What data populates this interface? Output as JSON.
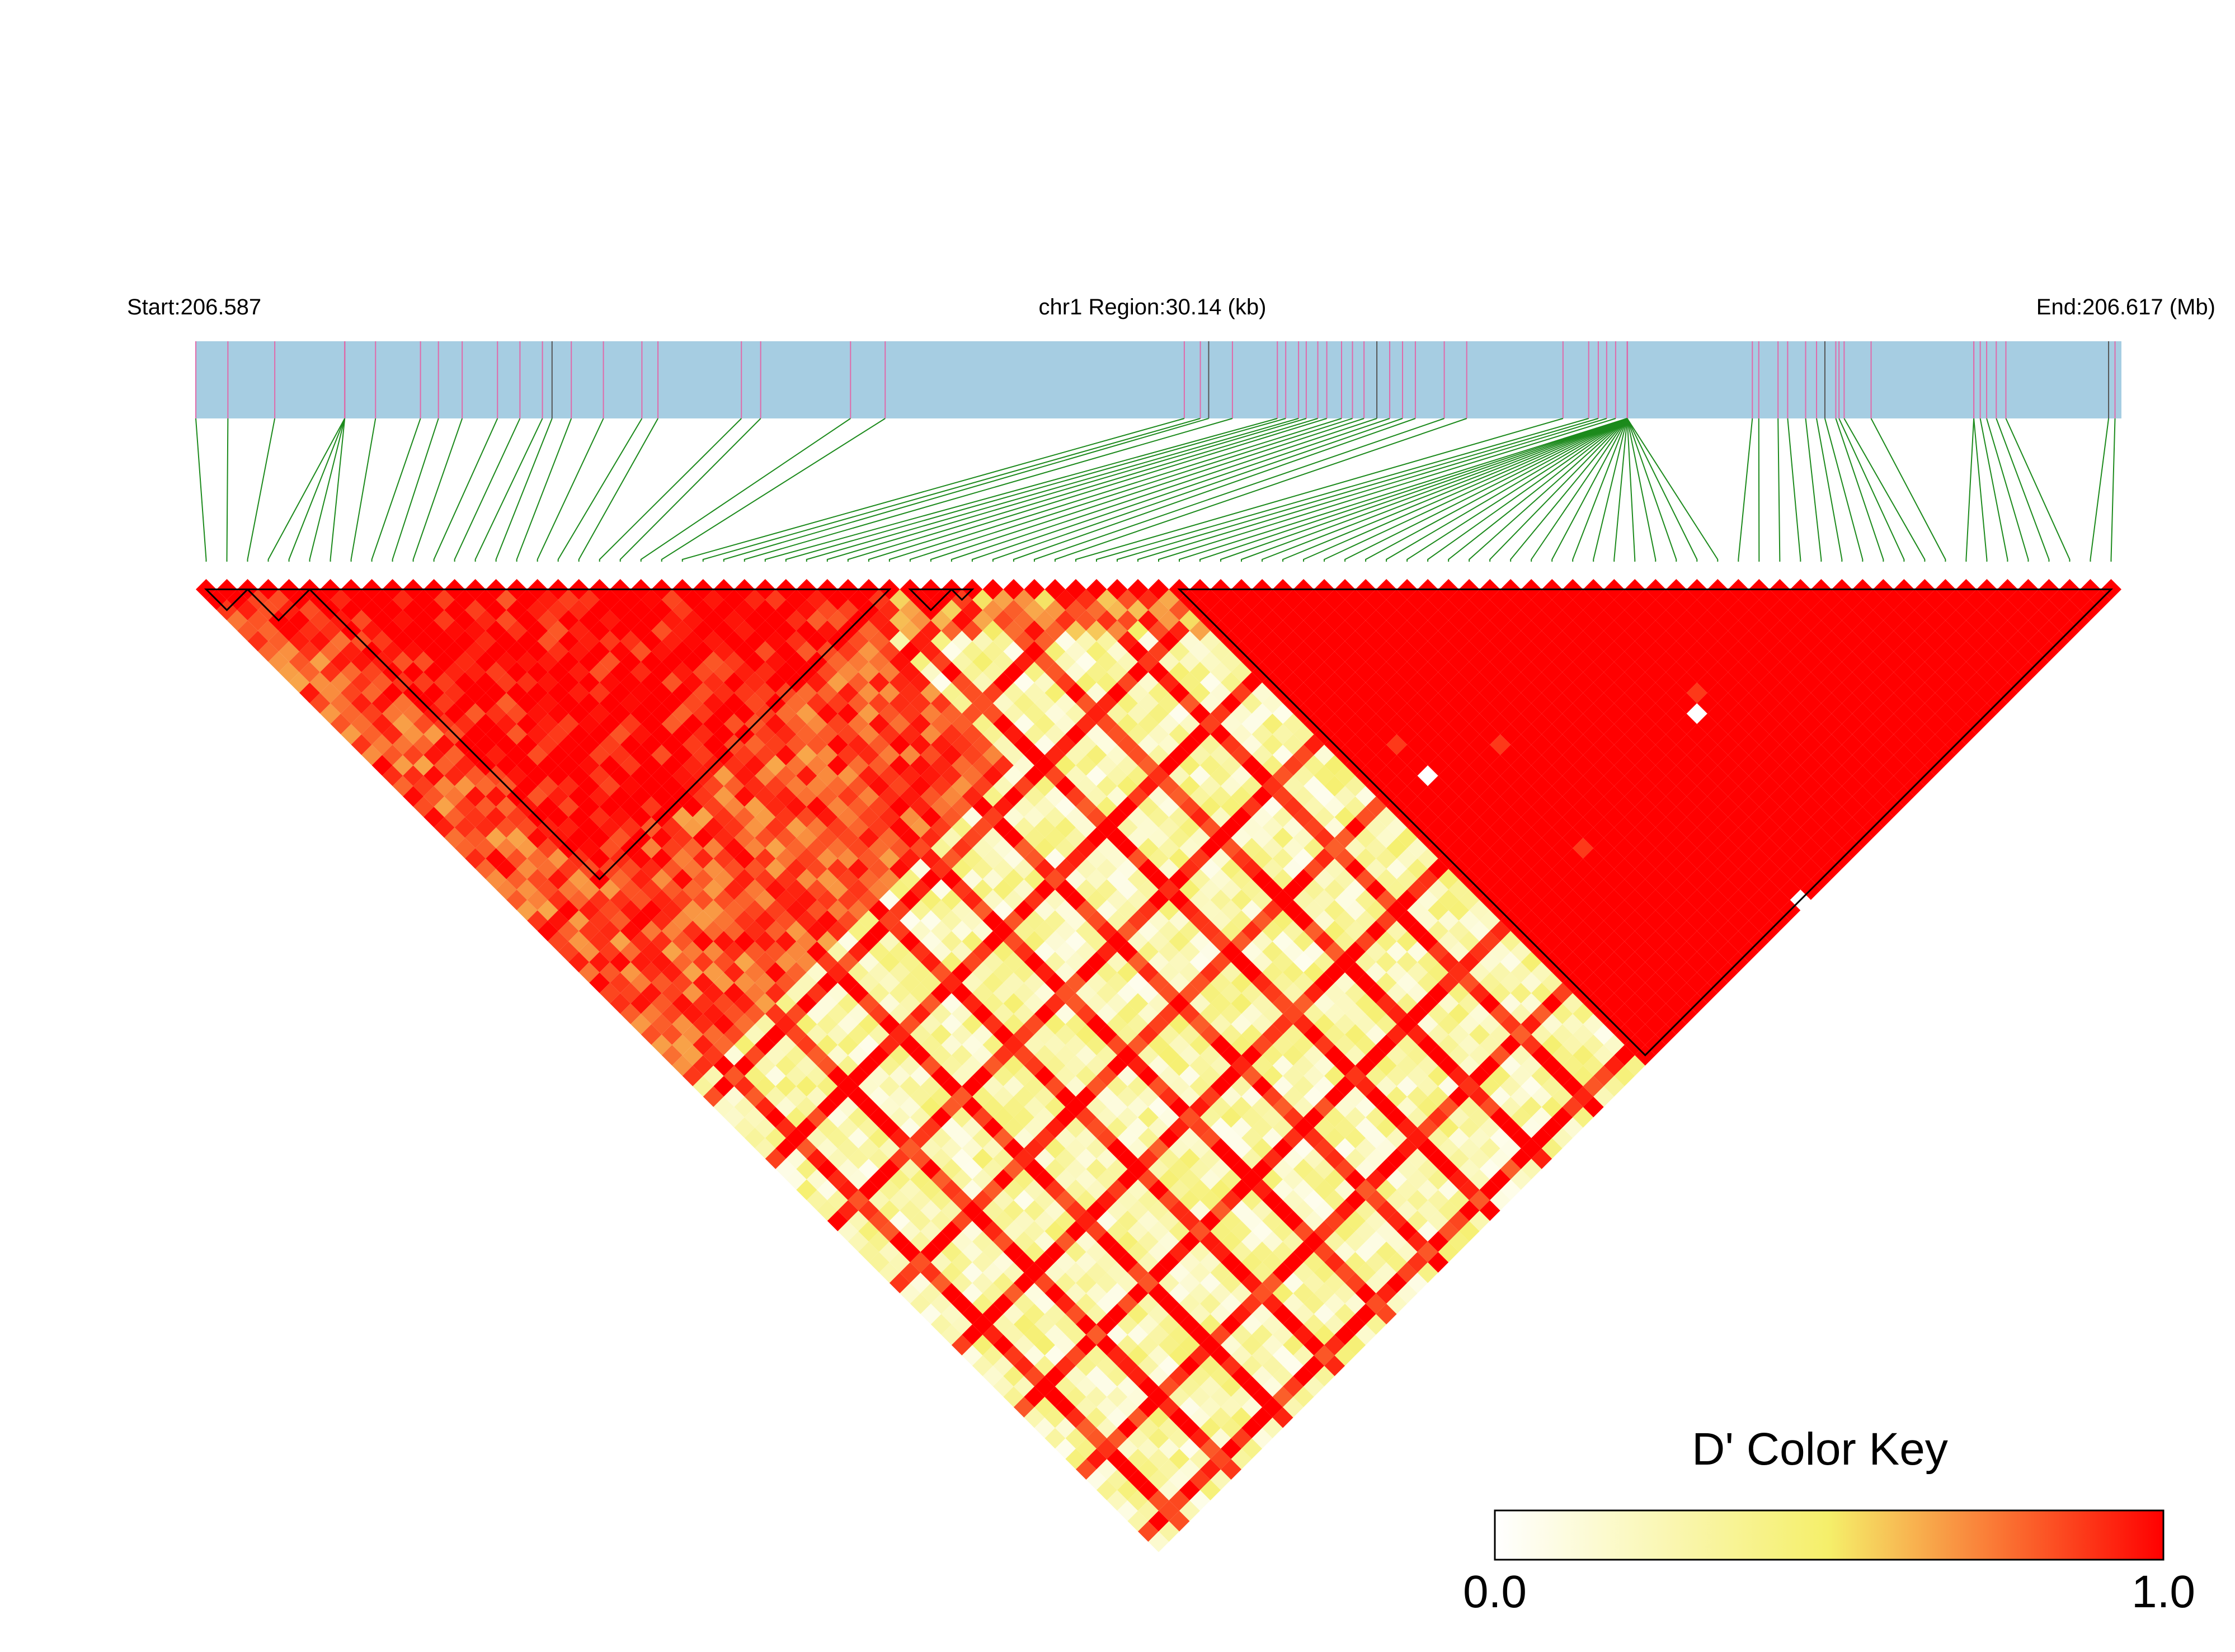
{
  "chart_data": {
    "type": "heatmap",
    "title": "",
    "header": {
      "start_label": "Start:206.587",
      "region_label": "chr1 Region:30.14 (kb)",
      "end_label": "End:206.617 (Mb)"
    },
    "region": {
      "chromosome": "chr1",
      "start_mb": 206.587,
      "end_mb": 206.617,
      "length_kb": 30.14
    },
    "n_snps": 93,
    "snp_positions_mb": [
      206.587,
      206.5875,
      206.58823,
      206.58932,
      206.58932,
      206.58932,
      206.58932,
      206.5898,
      206.5905,
      206.59078,
      206.59115,
      206.5917,
      206.59205,
      206.5924,
      206.59255,
      206.59285,
      206.59335,
      206.59395,
      206.5942,
      206.5955,
      206.5958,
      206.5972,
      206.59774,
      206.6024,
      206.60265,
      206.60278,
      206.60315,
      206.60385,
      206.60398,
      206.60418,
      206.6043,
      206.60448,
      206.60462,
      206.60485,
      206.60502,
      206.6052,
      206.6054,
      206.6056,
      206.6058,
      206.606,
      206.60645,
      206.6068,
      206.6083,
      206.6087,
      206.60885,
      206.60898,
      206.60912,
      206.6093,
      206.6093,
      206.6093,
      206.6093,
      206.6093,
      206.6093,
      206.6093,
      206.6093,
      206.6093,
      206.6093,
      206.6093,
      206.6093,
      206.6093,
      206.6093,
      206.6093,
      206.6093,
      206.6093,
      206.6093,
      206.6093,
      206.6093,
      206.6093,
      206.6093,
      206.6093,
      206.6093,
      206.6093,
      206.6093,
      206.6093,
      206.61125,
      206.61135,
      206.61165,
      206.6118,
      206.61208,
      206.61225,
      206.61238,
      206.61255,
      206.6126,
      206.61268,
      206.6131,
      206.6147,
      206.6147,
      206.6148,
      206.6149,
      206.61505,
      206.6152,
      206.6168,
      206.6169
    ],
    "ld_blocks": [
      {
        "first_snp": 0,
        "last_snp": 2
      },
      {
        "first_snp": 2,
        "last_snp": 5
      },
      {
        "first_snp": 5,
        "last_snp": 33
      },
      {
        "first_snp": 34,
        "last_snp": 36
      },
      {
        "first_snp": 36,
        "last_snp": 37
      },
      {
        "first_snp": 47,
        "last_snp": 92
      }
    ],
    "dprime_scale": {
      "title": "D' Color Key",
      "min_label": "0.0",
      "max_label": "1.0",
      "min": 0,
      "max": 1,
      "colors": [
        "#ffffff",
        "#f5ef6a",
        "#ff0000"
      ]
    },
    "colors": {
      "track": "#a6cde2",
      "snp_tick": "#e06aaa",
      "snp_tick_dense": "#555555",
      "connector": "#1c8a1c",
      "cell_high": "#ff0000"
    }
  }
}
